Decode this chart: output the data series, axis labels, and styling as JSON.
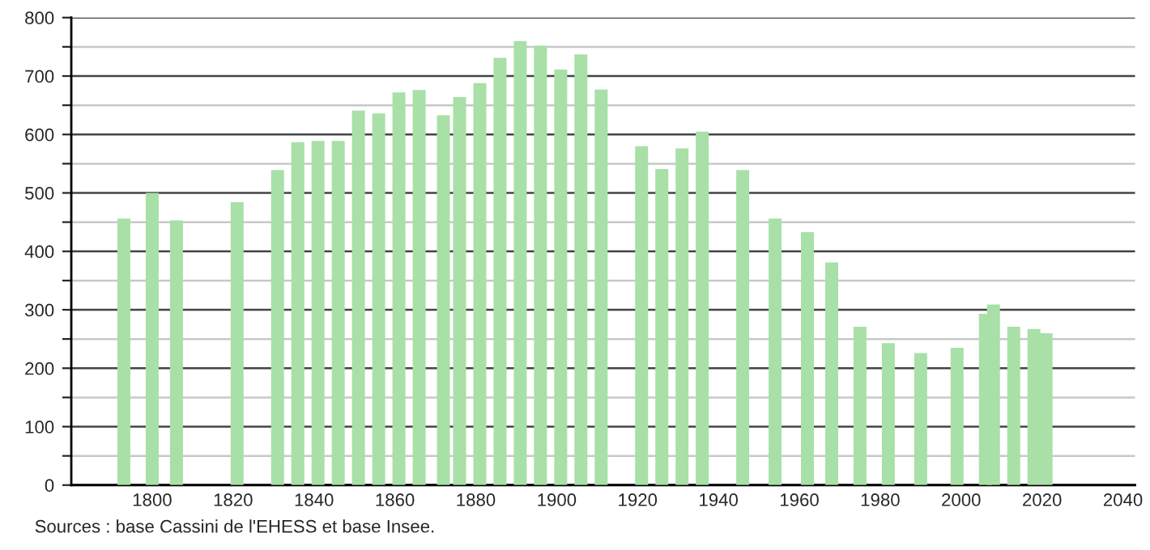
{
  "chart_data": {
    "type": "bar",
    "x": [
      1793,
      1800,
      1806,
      1821,
      1831,
      1836,
      1841,
      1846,
      1851,
      1856,
      1861,
      1866,
      1872,
      1876,
      1881,
      1886,
      1891,
      1896,
      1901,
      1906,
      1911,
      1921,
      1926,
      1931,
      1936,
      1946,
      1954,
      1962,
      1968,
      1975,
      1982,
      1990,
      1999,
      2006,
      2008,
      2013,
      2018,
      2021
    ],
    "values": [
      456,
      500,
      453,
      484,
      539,
      587,
      589,
      589,
      641,
      636,
      672,
      676,
      633,
      664,
      688,
      731,
      760,
      752,
      711,
      737,
      677,
      580,
      541,
      576,
      605,
      539,
      456,
      433,
      381,
      271,
      243,
      226,
      235,
      293,
      309,
      271,
      267,
      260
    ],
    "color": "#a8e0a8",
    "xlim": [
      1780,
      2043
    ],
    "xticks": [
      1800,
      1820,
      1840,
      1860,
      1880,
      1900,
      1920,
      1940,
      1960,
      1980,
      2000,
      2020,
      2040
    ],
    "ylim": [
      0,
      800
    ],
    "yticks": [
      0,
      {
        "value": 50,
        "label": null
      },
      100,
      {
        "value": 150,
        "label": null
      },
      200,
      {
        "value": 250,
        "label": null
      },
      300,
      {
        "value": 350,
        "label": null
      },
      400,
      {
        "value": 450,
        "label": null
      },
      500,
      {
        "value": 550,
        "label": null
      },
      600,
      {
        "value": 650,
        "label": null
      },
      700,
      {
        "value": 750,
        "label": null
      },
      800
    ],
    "grid": "y",
    "annotations": [
      "Sources : base Cassini de l'EHESS et base Insee."
    ]
  }
}
